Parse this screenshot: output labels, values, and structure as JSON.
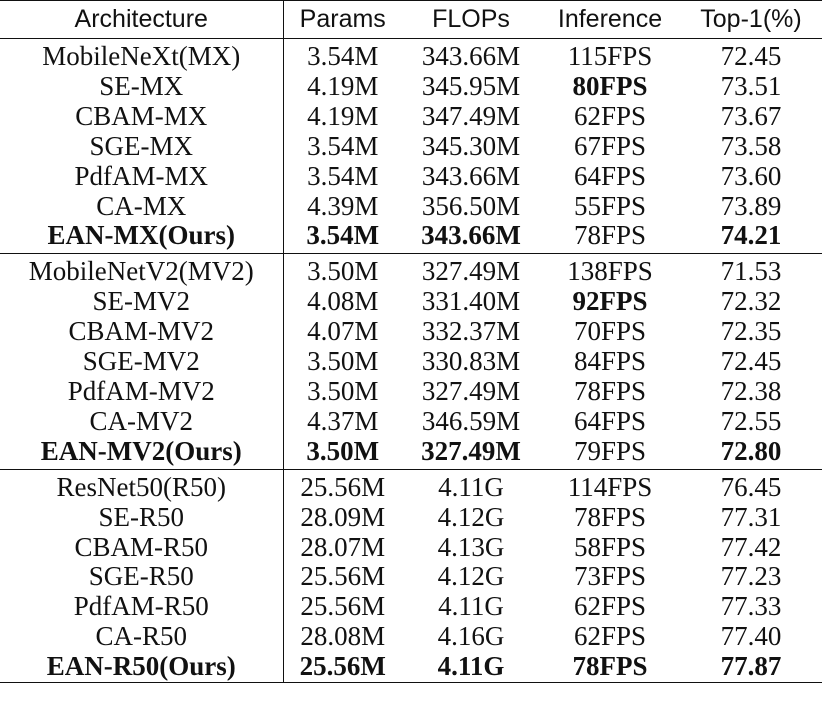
{
  "headers": [
    "Architecture",
    "Params",
    "FLOPs",
    "Inference",
    "Top-1(%)"
  ],
  "groups": [
    {
      "rows": [
        {
          "arch": "MobileNeXt(MX)",
          "params": "3.54M",
          "flops": "343.66M",
          "inference": "115FPS",
          "top1": "72.45",
          "bold": []
        },
        {
          "arch": "SE-MX",
          "params": "4.19M",
          "flops": "345.95M",
          "inference": "80FPS",
          "top1": "73.51",
          "bold": [
            "inference"
          ]
        },
        {
          "arch": "CBAM-MX",
          "params": "4.19M",
          "flops": "347.49M",
          "inference": "62FPS",
          "top1": "73.67",
          "bold": []
        },
        {
          "arch": "SGE-MX",
          "params": "3.54M",
          "flops": "345.30M",
          "inference": "67FPS",
          "top1": "73.58",
          "bold": []
        },
        {
          "arch": "PdfAM-MX",
          "params": "3.54M",
          "flops": "343.66M",
          "inference": "64FPS",
          "top1": "73.60",
          "bold": []
        },
        {
          "arch": "CA-MX",
          "params": "4.39M",
          "flops": "356.50M",
          "inference": "55FPS",
          "top1": "73.89",
          "bold": []
        },
        {
          "arch": "EAN-MX(Ours)",
          "params": "3.54M",
          "flops": "343.66M",
          "inference": "78FPS",
          "top1": "74.21",
          "bold": [
            "arch",
            "params",
            "flops",
            "top1"
          ]
        }
      ]
    },
    {
      "rows": [
        {
          "arch": "MobileNetV2(MV2)",
          "params": "3.50M",
          "flops": "327.49M",
          "inference": "138FPS",
          "top1": "71.53",
          "bold": []
        },
        {
          "arch": "SE-MV2",
          "params": "4.08M",
          "flops": "331.40M",
          "inference": "92FPS",
          "top1": "72.32",
          "bold": [
            "inference"
          ]
        },
        {
          "arch": "CBAM-MV2",
          "params": "4.07M",
          "flops": "332.37M",
          "inference": "70FPS",
          "top1": "72.35",
          "bold": []
        },
        {
          "arch": "SGE-MV2",
          "params": "3.50M",
          "flops": "330.83M",
          "inference": "84FPS",
          "top1": "72.45",
          "bold": []
        },
        {
          "arch": "PdfAM-MV2",
          "params": "3.50M",
          "flops": "327.49M",
          "inference": "78FPS",
          "top1": "72.38",
          "bold": []
        },
        {
          "arch": "CA-MV2",
          "params": "4.37M",
          "flops": "346.59M",
          "inference": "64FPS",
          "top1": "72.55",
          "bold": []
        },
        {
          "arch": "EAN-MV2(Ours)",
          "params": "3.50M",
          "flops": "327.49M",
          "inference": "79FPS",
          "top1": "72.80",
          "bold": [
            "arch",
            "params",
            "flops",
            "top1"
          ]
        }
      ]
    },
    {
      "rows": [
        {
          "arch": "ResNet50(R50)",
          "params": "25.56M",
          "flops": "4.11G",
          "inference": "114FPS",
          "top1": "76.45",
          "bold": []
        },
        {
          "arch": "SE-R50",
          "params": "28.09M",
          "flops": "4.12G",
          "inference": "78FPS",
          "top1": "77.31",
          "bold": []
        },
        {
          "arch": "CBAM-R50",
          "params": "28.07M",
          "flops": "4.13G",
          "inference": "58FPS",
          "top1": "77.42",
          "bold": []
        },
        {
          "arch": "SGE-R50",
          "params": "25.56M",
          "flops": "4.12G",
          "inference": "73FPS",
          "top1": "77.23",
          "bold": []
        },
        {
          "arch": "PdfAM-R50",
          "params": "25.56M",
          "flops": "4.11G",
          "inference": "62FPS",
          "top1": "77.33",
          "bold": []
        },
        {
          "arch": "CA-R50",
          "params": "28.08M",
          "flops": "4.16G",
          "inference": "62FPS",
          "top1": "77.40",
          "bold": []
        },
        {
          "arch": "EAN-R50(Ours)",
          "params": "25.56M",
          "flops": "4.11G",
          "inference": "78FPS",
          "top1": "77.87",
          "bold": [
            "arch",
            "params",
            "flops",
            "inference",
            "top1"
          ]
        }
      ]
    }
  ]
}
